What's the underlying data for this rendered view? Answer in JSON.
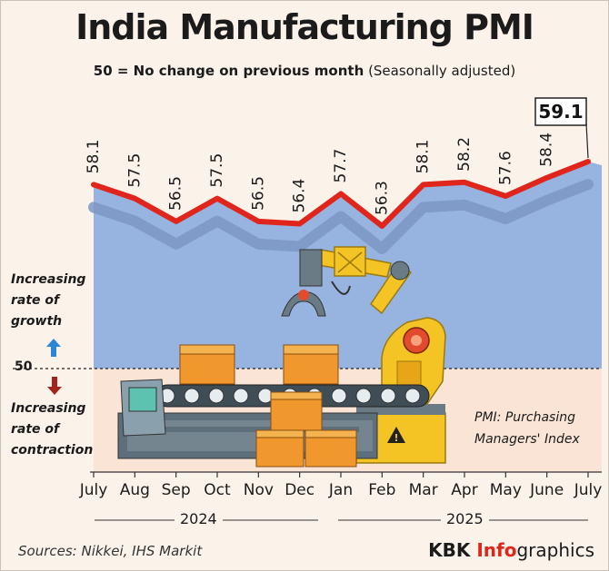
{
  "title": "India Manufacturing PMI",
  "subtitle_bold": "50 = No change on previous month",
  "subtitle_light": "(Seasonally adjusted)",
  "side_growth": [
    "Increasing",
    "rate of",
    "growth"
  ],
  "side_contraction": [
    "Increasing",
    "rate of",
    "contraction"
  ],
  "baseline_label": "50",
  "note": [
    "PMI: Purchasing",
    "Managers' Index"
  ],
  "years": [
    "2024",
    "2025"
  ],
  "sources": "Sources: Nikkei, IHS Markit",
  "brand": {
    "part1": "KBK ",
    "part2": "Info",
    "part3": "graphics"
  },
  "colors": {
    "line": "#e0261c",
    "area": "#97b3df",
    "shadow": "#7d97c6",
    "background": "#fbf3ea",
    "accent_up": "#2a86d6",
    "accent_down": "#a3231b"
  },
  "chart_data": {
    "type": "line",
    "categories": [
      "July",
      "Aug",
      "Sep",
      "Oct",
      "Nov",
      "Dec",
      "Jan",
      "Feb",
      "Mar",
      "Apr",
      "May",
      "June",
      "July"
    ],
    "values": [
      58.1,
      57.5,
      56.5,
      57.5,
      56.5,
      56.4,
      57.7,
      56.3,
      58.1,
      58.2,
      57.6,
      58.4,
      59.1
    ],
    "value_labels": [
      "58.1",
      "57.5",
      "56.5",
      "57.5",
      "56.5",
      "56.4",
      "57.7",
      "56.3",
      "58.1",
      "58.2",
      "57.6",
      "58.4",
      "59.1"
    ],
    "baseline": 50,
    "highlight_last": true
  }
}
